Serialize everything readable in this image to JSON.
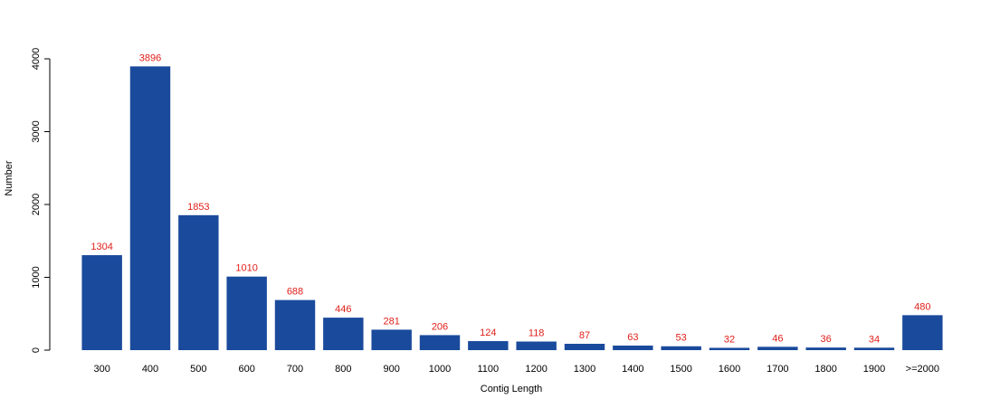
{
  "chart_data": {
    "type": "bar",
    "title": "",
    "xlabel": "Contig Length",
    "ylabel": "Number",
    "categories": [
      "300",
      "400",
      "500",
      "600",
      "700",
      "800",
      "900",
      "1000",
      "1100",
      "1200",
      "1300",
      "1400",
      "1500",
      "1600",
      "1700",
      "1800",
      "1900",
      ">=2000"
    ],
    "values": [
      1304,
      3896,
      1853,
      1010,
      688,
      446,
      281,
      206,
      124,
      118,
      87,
      63,
      53,
      32,
      46,
      36,
      34,
      480
    ],
    "ylim": [
      0,
      4000
    ],
    "yticks": [
      0,
      1000,
      2000,
      3000,
      4000
    ],
    "grid": false,
    "legend": "none",
    "colors": {
      "bar": "#1a4a9c",
      "data_label": "#e0201a"
    }
  }
}
